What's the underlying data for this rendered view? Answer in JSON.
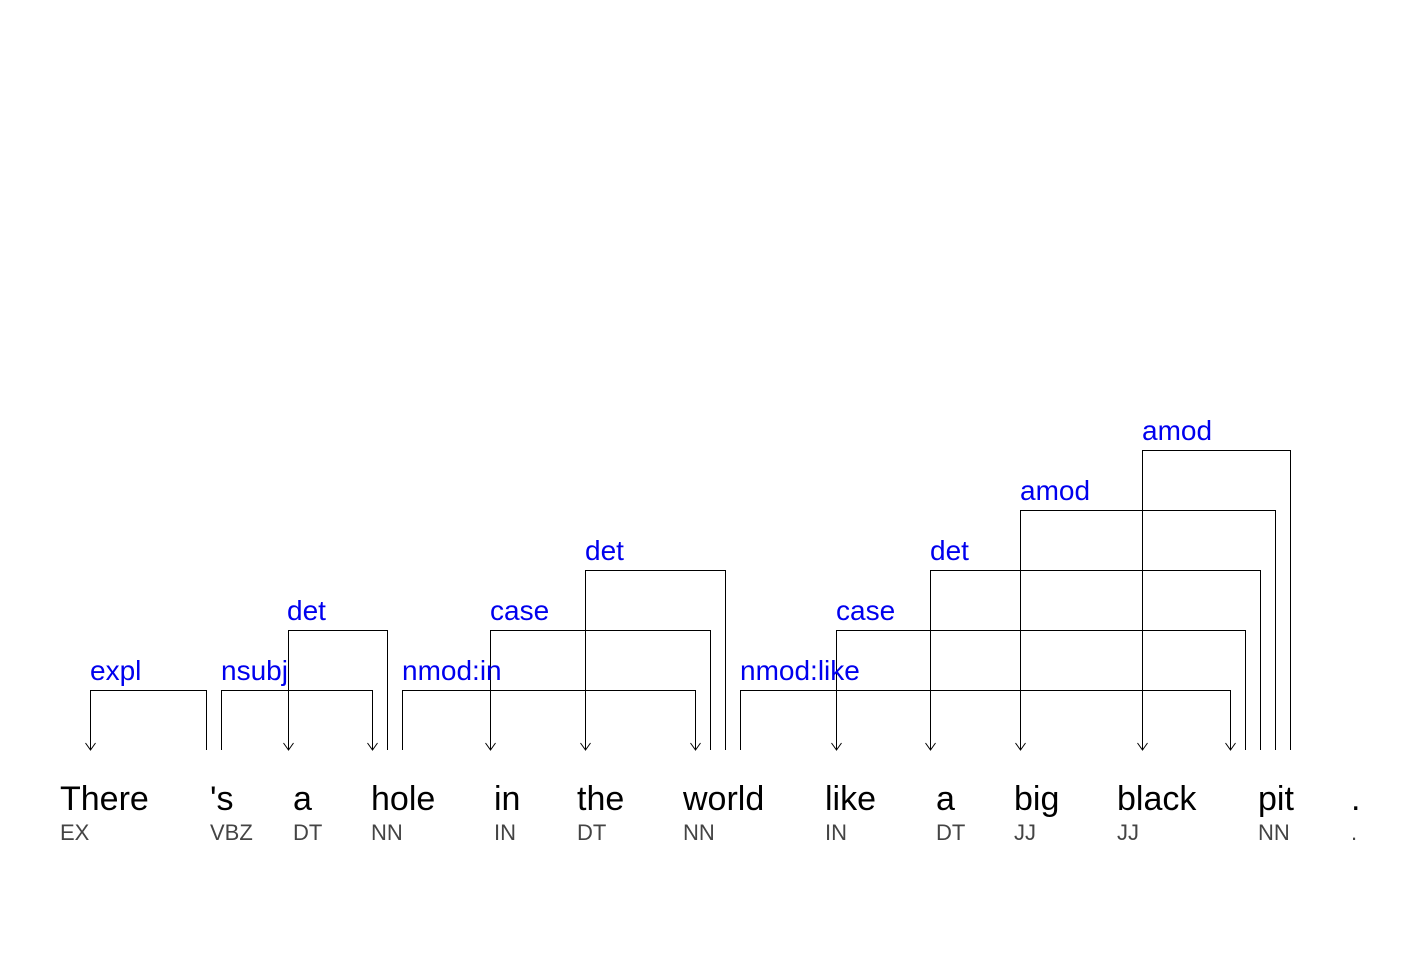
{
  "colors": {
    "relation": "#0000ee",
    "word": "#000000",
    "tag": "#444444",
    "line": "#000000"
  },
  "tokens": [
    {
      "word": "There",
      "tag": "EX"
    },
    {
      "word": "'s",
      "tag": "VBZ"
    },
    {
      "word": "a",
      "tag": "DT"
    },
    {
      "word": "hole",
      "tag": "NN"
    },
    {
      "word": "in",
      "tag": "IN"
    },
    {
      "word": "the",
      "tag": "DT"
    },
    {
      "word": "world",
      "tag": "NN"
    },
    {
      "word": "like",
      "tag": "IN"
    },
    {
      "word": "a",
      "tag": "DT"
    },
    {
      "word": "big",
      "tag": "JJ"
    },
    {
      "word": "black",
      "tag": "JJ"
    },
    {
      "word": "pit",
      "tag": "NN"
    },
    {
      "word": ".",
      "tag": "."
    }
  ],
  "dependencies": [
    {
      "label": "expl",
      "head": 1,
      "dependent": 0
    },
    {
      "label": "nsubj",
      "head": 1,
      "dependent": 3
    },
    {
      "label": "det",
      "head": 3,
      "dependent": 2
    },
    {
      "label": "nmod:in",
      "head": 3,
      "dependent": 6
    },
    {
      "label": "case",
      "head": 6,
      "dependent": 4
    },
    {
      "label": "det",
      "head": 6,
      "dependent": 5
    },
    {
      "label": "nmod:like",
      "head": 6,
      "dependent": 11
    },
    {
      "label": "case",
      "head": 11,
      "dependent": 7
    },
    {
      "label": "det",
      "head": 11,
      "dependent": 8
    },
    {
      "label": "amod",
      "head": 11,
      "dependent": 9
    },
    {
      "label": "amod",
      "head": 11,
      "dependent": 10
    }
  ]
}
